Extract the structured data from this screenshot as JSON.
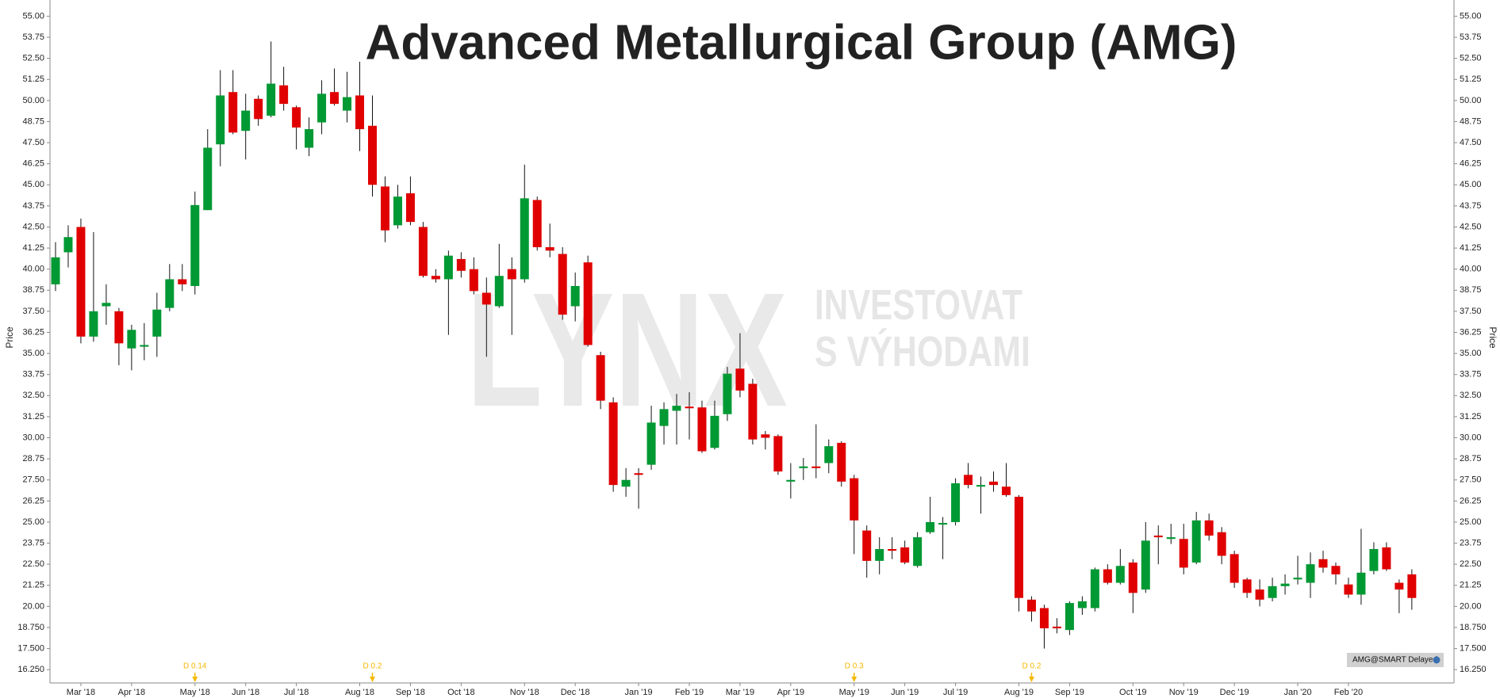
{
  "chart_data": {
    "type": "candlestick",
    "title": "Advanced Metallurgical Group (AMG)",
    "y_label": "Price",
    "watermark": [
      "LYNX",
      "INVESTOVAT",
      "S VÝHODAMI"
    ],
    "source_badge": "AMG@SMART Delayed",
    "annotations": [
      "D 0.14",
      "D 0.2",
      "D 0.3",
      "D 0.2"
    ],
    "up_color": "#009933",
    "down_color": "#e00000",
    "annotation_color": "#f5b800",
    "categories": [
      null,
      null,
      "Mar '18",
      null,
      null,
      null,
      "Apr '18",
      null,
      null,
      null,
      null,
      "May '18",
      null,
      null,
      null,
      "Jun '18",
      null,
      null,
      null,
      "Jul '18",
      null,
      null,
      null,
      null,
      "Aug '18",
      null,
      null,
      null,
      "Sep '18",
      null,
      null,
      null,
      "Oct '18",
      null,
      null,
      null,
      null,
      "Nov '18",
      null,
      null,
      null,
      "Dec '18",
      null,
      null,
      null,
      null,
      "Jan '19",
      null,
      null,
      null,
      "Feb '19",
      null,
      null,
      null,
      "Mar '19",
      null,
      null,
      null,
      "Apr '19",
      null,
      null,
      null,
      null,
      "May '19",
      null,
      null,
      null,
      "Jun '19",
      null,
      null,
      null,
      "Jul '19",
      null,
      null,
      null,
      null,
      "Aug '19",
      null,
      null,
      null,
      "Sep '19",
      null,
      null,
      null,
      null,
      "Oct '19",
      null,
      null,
      null,
      "Nov '19",
      null,
      null,
      null,
      "Dec '19",
      null,
      null,
      null,
      null,
      "Jan '20",
      null,
      null,
      null,
      "Feb '20",
      null,
      null,
      null,
      null,
      null
    ],
    "open": [
      39.1,
      41.0,
      42.5,
      36.0,
      37.8,
      37.5,
      35.3,
      35.4,
      36.0,
      37.7,
      39.4,
      39.0,
      43.5,
      47.4,
      50.5,
      48.2,
      50.1,
      49.1,
      50.9,
      49.6,
      47.2,
      48.7,
      50.5,
      49.4,
      50.3,
      48.5,
      44.9,
      42.6,
      44.5,
      42.5,
      39.6,
      39.4,
      40.6,
      40.0,
      38.6,
      37.8,
      40.0,
      39.4,
      44.1,
      41.3,
      40.9,
      37.8,
      40.4,
      34.9,
      32.1,
      27.1,
      27.9,
      28.4,
      30.7,
      31.6,
      31.85,
      31.8,
      29.4,
      31.4,
      34.1,
      33.2,
      30.2,
      30.1,
      27.4,
      28.2,
      28.3,
      28.5,
      29.7,
      27.6,
      24.5,
      22.7,
      23.4,
      23.5,
      22.4,
      24.4,
      24.85,
      25.0,
      27.8,
      27.1,
      27.4,
      27.1,
      26.5,
      20.4,
      19.9,
      18.8,
      18.6,
      19.9,
      19.9,
      22.2,
      21.4,
      22.6,
      21.0,
      24.2,
      24.0,
      24.0,
      22.6,
      25.1,
      24.4,
      23.1,
      21.6,
      21.0,
      20.5,
      21.2,
      21.6,
      21.4,
      22.8,
      22.4,
      21.3,
      20.7,
      22.1,
      23.5,
      21.4,
      21.9
    ],
    "high": [
      41.6,
      42.6,
      43.0,
      42.2,
      39.1,
      37.7,
      36.7,
      36.8,
      38.6,
      40.3,
      40.3,
      44.6,
      48.3,
      51.8,
      51.8,
      50.4,
      50.3,
      53.5,
      52.0,
      49.7,
      49.0,
      51.2,
      51.9,
      51.7,
      52.3,
      50.3,
      45.5,
      45.0,
      45.5,
      42.8,
      40.0,
      41.1,
      41.0,
      40.7,
      39.5,
      41.5,
      40.7,
      46.2,
      44.3,
      42.7,
      41.3,
      39.8,
      40.8,
      35.1,
      32.4,
      28.2,
      28.2,
      31.9,
      32.1,
      32.6,
      32.7,
      32.2,
      32.2,
      34.2,
      36.2,
      33.5,
      30.4,
      30.2,
      28.5,
      28.8,
      30.8,
      29.9,
      29.8,
      27.8,
      24.8,
      24.1,
      24.1,
      23.9,
      24.4,
      26.5,
      25.3,
      27.6,
      28.5,
      27.7,
      28.0,
      28.5,
      26.6,
      20.6,
      20.1,
      19.3,
      20.3,
      20.6,
      22.3,
      22.5,
      23.4,
      22.8,
      25.0,
      24.8,
      24.9,
      24.9,
      25.6,
      25.5,
      24.7,
      23.3,
      21.7,
      21.6,
      21.7,
      21.9,
      23.0,
      23.2,
      23.3,
      22.6,
      21.7,
      24.6,
      23.8,
      23.8,
      21.6,
      22.2
    ],
    "low": [
      38.7,
      40.1,
      35.6,
      35.7,
      36.7,
      34.3,
      34.0,
      34.6,
      34.8,
      37.5,
      38.7,
      38.5,
      43.5,
      46.1,
      48.0,
      46.5,
      48.5,
      49.0,
      49.4,
      47.1,
      46.7,
      48.0,
      49.7,
      48.7,
      47.0,
      44.3,
      41.6,
      42.4,
      42.6,
      39.5,
      39.2,
      36.1,
      39.5,
      38.5,
      34.8,
      37.7,
      36.1,
      39.2,
      41.1,
      40.7,
      37.0,
      36.9,
      35.4,
      31.7,
      26.8,
      26.5,
      25.8,
      28.1,
      29.6,
      29.6,
      29.9,
      29.1,
      29.3,
      31.0,
      32.4,
      29.6,
      29.3,
      27.8,
      26.4,
      27.5,
      27.6,
      27.9,
      27.1,
      23.1,
      21.7,
      21.9,
      22.8,
      22.5,
      22.3,
      24.3,
      22.8,
      24.8,
      27.0,
      25.5,
      26.8,
      26.5,
      19.7,
      19.1,
      17.5,
      18.4,
      18.3,
      19.5,
      19.7,
      21.3,
      21.3,
      19.6,
      20.8,
      22.5,
      23.7,
      21.9,
      22.5,
      23.9,
      22.5,
      21.1,
      20.5,
      20.0,
      20.3,
      20.7,
      21.3,
      20.5,
      22.0,
      21.3,
      20.5,
      20.1,
      21.9,
      22.1,
      19.6,
      19.8
    ],
    "close": [
      40.7,
      41.9,
      36.0,
      37.5,
      38.0,
      35.6,
      36.4,
      35.5,
      37.6,
      39.4,
      39.1,
      43.8,
      47.2,
      50.3,
      48.1,
      49.4,
      48.9,
      51.0,
      49.8,
      48.4,
      48.3,
      50.4,
      49.8,
      50.2,
      48.3,
      45.0,
      42.3,
      44.3,
      42.8,
      39.6,
      39.4,
      40.8,
      39.9,
      38.7,
      37.9,
      39.6,
      39.4,
      44.2,
      41.3,
      41.1,
      37.3,
      39.0,
      35.5,
      32.2,
      27.2,
      27.5,
      27.8,
      30.9,
      31.7,
      31.9,
      31.75,
      29.2,
      31.3,
      33.8,
      32.8,
      29.9,
      30.0,
      28.0,
      27.5,
      28.3,
      28.2,
      29.5,
      27.4,
      25.1,
      22.7,
      23.4,
      23.3,
      22.6,
      24.1,
      25.0,
      24.95,
      27.3,
      27.2,
      27.2,
      27.2,
      26.6,
      20.5,
      19.7,
      18.7,
      18.7,
      20.2,
      20.3,
      22.2,
      21.4,
      22.4,
      20.8,
      23.9,
      24.1,
      24.1,
      22.3,
      25.1,
      24.2,
      23.0,
      21.4,
      20.8,
      20.4,
      21.2,
      21.35,
      21.7,
      22.5,
      22.3,
      21.9,
      20.7,
      22.0,
      23.4,
      22.2,
      21.0,
      20.5
    ],
    "ylim": [
      15.46,
      55.96
    ],
    "yticks": [
      {
        "value": 16.25,
        "label": "16.250"
      },
      {
        "value": 17.5,
        "label": "17.500"
      },
      {
        "value": 18.75,
        "label": "18.750"
      },
      {
        "value": 20,
        "label": "20.00"
      },
      21.25,
      {
        "value": 22.5,
        "label": "22.50"
      },
      23.75,
      {
        "value": 25,
        "label": "25.00"
      },
      26.25,
      {
        "value": 27.5,
        "label": "27.50"
      },
      28.75,
      {
        "value": 30,
        "label": "30.00"
      },
      31.25,
      {
        "value": 32.5,
        "label": "32.50"
      },
      33.75,
      {
        "value": 35,
        "label": "35.00"
      },
      36.25,
      {
        "value": 37.5,
        "label": "37.50"
      },
      38.75,
      {
        "value": 40,
        "label": "40.00"
      },
      41.25,
      {
        "value": 42.5,
        "label": "42.50"
      },
      43.75,
      {
        "value": 45,
        "label": "45.00"
      },
      46.25,
      {
        "value": 47.5,
        "label": "47.50"
      },
      48.75,
      {
        "value": 50,
        "label": "50.00"
      },
      51.25,
      {
        "value": 52.5,
        "label": "52.50"
      },
      53.75,
      {
        "value": 55,
        "label": "55.00"
      }
    ],
    "grid": false
  }
}
